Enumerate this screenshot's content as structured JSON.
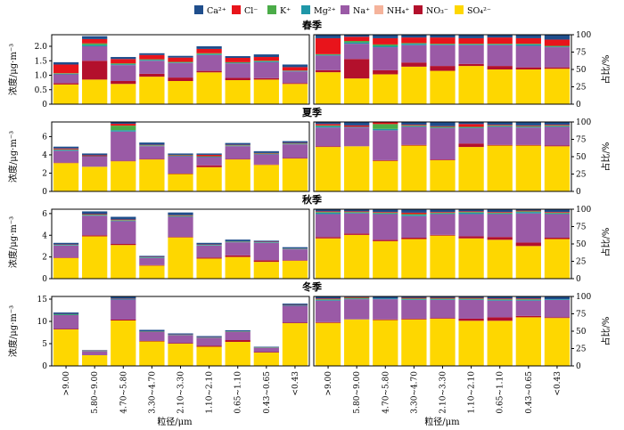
{
  "legend": [
    {
      "label": "Ca²⁺",
      "color": "#1f4e8c"
    },
    {
      "label": "Cl⁻",
      "color": "#e8141b"
    },
    {
      "label": "K⁺",
      "color": "#4bac48"
    },
    {
      "label": "Mg²⁺",
      "color": "#1f97a8"
    },
    {
      "label": "Na⁺",
      "color": "#9a5aa6"
    },
    {
      "label": "NH₄⁺",
      "color": "#f5b39b"
    },
    {
      "label": "NO₃⁻",
      "color": "#b3102c"
    },
    {
      "label": "SO₄²⁻",
      "color": "#fed700"
    }
  ],
  "labels": {
    "left_ylabel": "浓度/μg·m⁻³",
    "right_ylabel": "占比/%",
    "xlabel": "粒径/μm"
  },
  "chart_data": {
    "type": "bar",
    "stacked": true,
    "categories": [
      ">9.00",
      "5.80~9.00",
      "4.70~5.80",
      "3.30~4.70",
      "2.10~3.30",
      "1.10~2.10",
      "0.65~1.10",
      "0.43~0.65",
      "<0.43"
    ],
    "series_order": [
      "SO₄²⁻",
      "NO₃⁻",
      "NH₄⁺",
      "Na⁺",
      "Mg²⁺",
      "K⁺",
      "Cl⁻",
      "Ca²⁺"
    ],
    "panels": [
      {
        "title": "春季",
        "conc_ylim": [
          0,
          2.4
        ],
        "conc_ticks": [
          "0",
          "0.5",
          "1.0",
          "1.5",
          "2.0"
        ],
        "conc_tick_values": [
          0,
          0.5,
          1.0,
          1.5,
          2.0
        ],
        "concentration": [
          [
            0.68,
            0.85,
            0.7,
            0.95,
            0.8,
            1.1,
            0.83,
            0.85,
            0.7
          ],
          [
            0.05,
            0.65,
            0.1,
            0.1,
            0.12,
            0.05,
            0.08,
            0.05,
            0.03
          ],
          [
            0.0,
            0.0,
            0.0,
            0.0,
            0.0,
            0.0,
            0.0,
            0.0,
            0.0
          ],
          [
            0.3,
            0.5,
            0.55,
            0.45,
            0.5,
            0.55,
            0.5,
            0.55,
            0.4
          ],
          [
            0.02,
            0.05,
            0.03,
            0.03,
            0.02,
            0.03,
            0.02,
            0.03,
            0.02
          ],
          [
            0.02,
            0.05,
            0.03,
            0.02,
            0.02,
            0.03,
            0.02,
            0.02,
            0.01
          ],
          [
            0.3,
            0.15,
            0.15,
            0.15,
            0.15,
            0.15,
            0.15,
            0.13,
            0.12
          ],
          [
            0.08,
            0.1,
            0.07,
            0.06,
            0.06,
            0.09,
            0.06,
            0.09,
            0.09
          ]
        ],
        "percentage": [
          [
            46,
            37,
            43,
            54,
            48,
            55,
            50,
            50,
            51
          ],
          [
            3,
            28,
            6,
            6,
            7,
            3,
            5,
            3,
            2
          ],
          [
            0,
            0,
            0,
            0,
            0,
            0,
            0,
            0,
            0
          ],
          [
            21,
            22,
            33,
            25,
            30,
            27,
            30,
            31,
            29
          ],
          [
            1,
            2,
            2,
            2,
            1,
            1,
            1,
            2,
            1
          ],
          [
            1,
            2,
            2,
            1,
            1,
            1,
            1,
            1,
            1
          ],
          [
            23,
            6,
            9,
            8,
            9,
            8,
            9,
            8,
            9
          ],
          [
            5,
            3,
            5,
            4,
            4,
            5,
            4,
            5,
            7
          ]
        ]
      },
      {
        "title": "夏季",
        "conc_ylim": [
          0,
          7.6
        ],
        "conc_ticks": [
          "0",
          "2",
          "4",
          "6"
        ],
        "conc_tick_values": [
          0,
          2,
          4,
          6
        ],
        "concentration": [
          [
            3.1,
            2.7,
            3.3,
            3.5,
            1.9,
            2.65,
            3.5,
            2.9,
            3.6
          ],
          [
            0.05,
            0.0,
            0.05,
            0.05,
            0.05,
            0.2,
            0.05,
            0.05,
            0.05
          ],
          [
            0.0,
            0.0,
            0.0,
            0.0,
            0.0,
            0.0,
            0.0,
            0.0,
            0.0
          ],
          [
            1.3,
            1.1,
            3.2,
            1.4,
            1.9,
            0.9,
            1.4,
            1.1,
            1.5
          ],
          [
            0.1,
            0.05,
            0.15,
            0.05,
            0.05,
            0.05,
            0.05,
            0.05,
            0.05
          ],
          [
            0.05,
            0.0,
            0.5,
            0.05,
            0.05,
            0.05,
            0.05,
            0.05,
            0.05
          ],
          [
            0.1,
            0.1,
            0.2,
            0.05,
            0.05,
            0.15,
            0.05,
            0.05,
            0.05
          ],
          [
            0.2,
            0.2,
            0.2,
            0.25,
            0.15,
            0.15,
            0.2,
            0.2,
            0.2
          ]
        ],
        "percentage": [
          [
            64,
            65,
            44,
            66,
            45,
            64,
            66,
            66,
            65
          ],
          [
            1,
            0,
            1,
            1,
            1,
            5,
            1,
            1,
            1
          ],
          [
            0,
            0,
            0,
            0,
            0,
            0,
            0,
            0,
            0
          ],
          [
            27,
            27,
            43,
            26,
            45,
            22,
            26,
            25,
            27
          ],
          [
            2,
            1,
            2,
            1,
            1,
            1,
            1,
            1,
            1
          ],
          [
            1,
            0,
            7,
            1,
            1,
            1,
            1,
            1,
            1
          ],
          [
            2,
            2,
            3,
            1,
            1,
            4,
            1,
            1,
            1
          ],
          [
            3,
            5,
            0,
            4,
            6,
            3,
            4,
            5,
            4
          ]
        ]
      },
      {
        "title": "秋季",
        "conc_ylim": [
          0,
          6.4
        ],
        "conc_ticks": [
          "0",
          "2",
          "4",
          "6"
        ],
        "conc_tick_values": [
          0,
          2,
          4,
          6
        ],
        "concentration": [
          [
            1.9,
            3.9,
            3.1,
            1.2,
            3.8,
            1.85,
            2.0,
            1.55,
            1.65
          ],
          [
            0.05,
            0.1,
            0.1,
            0.05,
            0.05,
            0.1,
            0.15,
            0.15,
            0.05
          ],
          [
            0.0,
            0.0,
            0.0,
            0.0,
            0.0,
            0.0,
            0.0,
            0.0,
            0.0
          ],
          [
            1.1,
            1.8,
            2.1,
            0.65,
            1.85,
            1.1,
            1.2,
            1.6,
            1.0
          ],
          [
            0.05,
            0.05,
            0.05,
            0.05,
            0.05,
            0.05,
            0.05,
            0.05,
            0.03
          ],
          [
            0.02,
            0.05,
            0.05,
            0.02,
            0.05,
            0.02,
            0.03,
            0.02,
            0.02
          ],
          [
            0.03,
            0.05,
            0.05,
            0.03,
            0.05,
            0.03,
            0.02,
            0.03,
            0.02
          ],
          [
            0.15,
            0.25,
            0.25,
            0.1,
            0.25,
            0.15,
            0.15,
            0.1,
            0.13
          ]
        ],
        "percentage": [
          [
            58,
            63,
            54,
            57,
            62,
            58,
            56,
            47,
            57
          ],
          [
            2,
            2,
            2,
            2,
            1,
            3,
            4,
            5,
            2
          ],
          [
            0,
            0,
            0,
            0,
            0,
            0,
            0,
            0,
            0
          ],
          [
            33,
            29,
            37,
            31,
            30,
            32,
            33,
            42,
            34
          ],
          [
            2,
            1,
            1,
            2,
            1,
            2,
            1,
            2,
            1
          ],
          [
            1,
            1,
            1,
            1,
            1,
            1,
            1,
            1,
            1
          ],
          [
            1,
            1,
            1,
            2,
            1,
            1,
            1,
            1,
            1
          ],
          [
            3,
            3,
            4,
            5,
            4,
            3,
            4,
            2,
            4
          ]
        ]
      },
      {
        "title": "冬季",
        "conc_ylim": [
          0,
          15.6
        ],
        "conc_ticks": [
          "0",
          "5",
          "10",
          "15"
        ],
        "conc_tick_values": [
          0,
          5,
          10,
          15
        ],
        "concentration": [
          [
            8.2,
            2.4,
            10.2,
            5.5,
            5.0,
            4.3,
            5.4,
            3.0,
            9.6
          ],
          [
            0.1,
            0.0,
            0.2,
            0.1,
            0.1,
            0.2,
            0.4,
            0.1,
            0.1
          ],
          [
            0.0,
            0.0,
            0.0,
            0.0,
            0.0,
            0.0,
            0.0,
            0.0,
            0.0
          ],
          [
            3.1,
            0.9,
            4.5,
            2.0,
            1.8,
            1.8,
            1.8,
            0.9,
            3.8
          ],
          [
            0.1,
            0.05,
            0.1,
            0.1,
            0.05,
            0.05,
            0.05,
            0.05,
            0.1
          ],
          [
            0.1,
            0.05,
            0.05,
            0.05,
            0.05,
            0.05,
            0.05,
            0.05,
            0.05
          ],
          [
            0.05,
            0.05,
            0.05,
            0.05,
            0.05,
            0.05,
            0.05,
            0.05,
            0.05
          ],
          [
            0.35,
            0.1,
            0.4,
            0.3,
            0.25,
            0.25,
            0.25,
            0.15,
            0.3
          ]
        ],
        "percentage": [
          [
            62,
            67,
            66,
            67,
            68,
            65,
            65,
            70,
            69
          ],
          [
            1,
            0,
            1,
            1,
            1,
            3,
            5,
            2,
            1
          ],
          [
            0,
            0,
            0,
            0,
            0,
            0,
            0,
            0,
            0
          ],
          [
            31,
            29,
            29,
            27,
            26,
            27,
            24,
            22,
            25
          ],
          [
            1,
            1,
            1,
            1,
            1,
            1,
            1,
            1,
            1
          ],
          [
            1,
            1,
            0,
            1,
            1,
            1,
            1,
            1,
            0
          ],
          [
            1,
            1,
            0,
            1,
            1,
            1,
            1,
            1,
            0
          ],
          [
            3,
            1,
            3,
            2,
            2,
            2,
            3,
            3,
            4
          ]
        ]
      }
    ],
    "pct_ylim": [
      0,
      100
    ],
    "pct_ticks": [
      "0",
      "25",
      "50",
      "75",
      "100"
    ],
    "pct_tick_values": [
      0,
      25,
      50,
      75,
      100
    ]
  }
}
